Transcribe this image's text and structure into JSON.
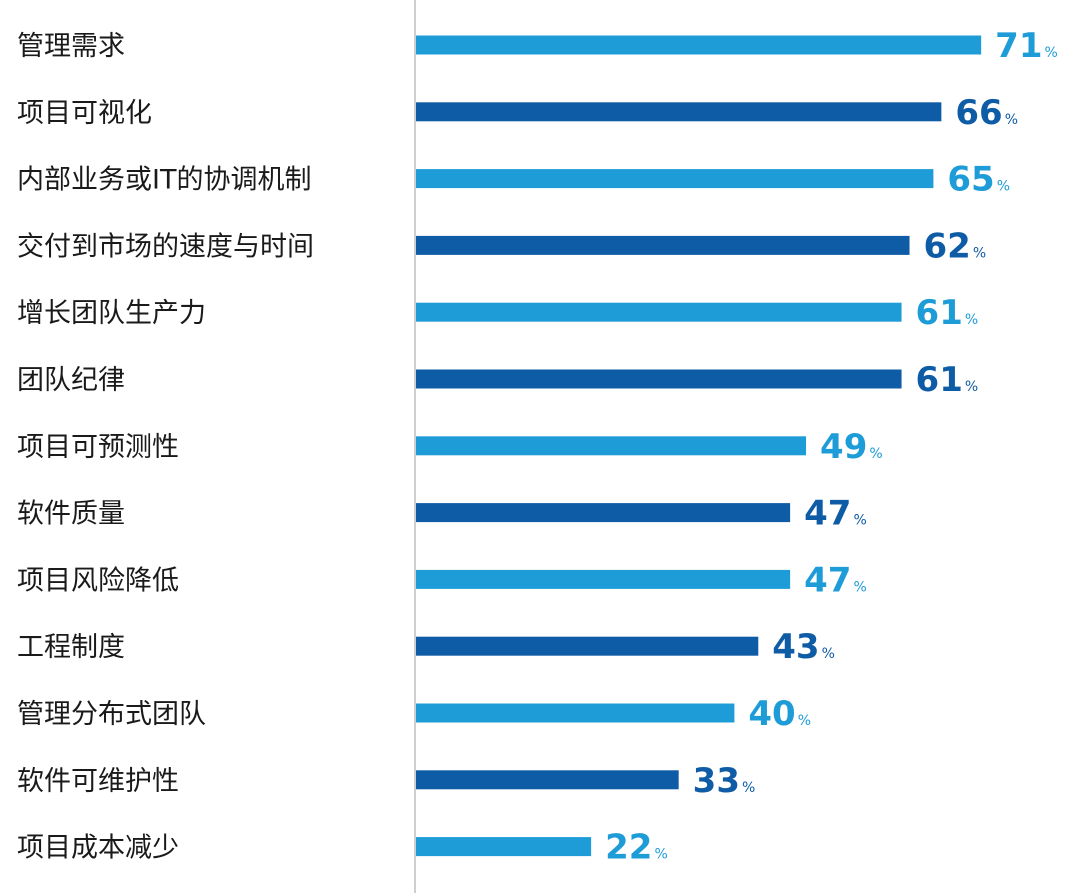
{
  "chart_data": {
    "type": "bar",
    "orientation": "horizontal",
    "title": "",
    "xlabel": "",
    "ylabel": "",
    "unit": "%",
    "grid": false,
    "xlim": [
      0,
      78
    ],
    "categories": [
      "管理需求",
      "项目可视化",
      "内部业务或IT的协调机制",
      "交付到市场的速度与时间",
      "增长团队生产力",
      "团队纪律",
      "项目可预测性",
      "软件质量",
      "项目风险降低",
      "工程制度",
      "管理分布式团队",
      "软件可维护性",
      "项目成本减少"
    ],
    "values": [
      71,
      66,
      65,
      62,
      61,
      61,
      49,
      47,
      47,
      43,
      40,
      33,
      22
    ],
    "colors": [
      "#1e9cd7",
      "#0f5ca6"
    ],
    "axis_color": "#bfbfbf"
  }
}
